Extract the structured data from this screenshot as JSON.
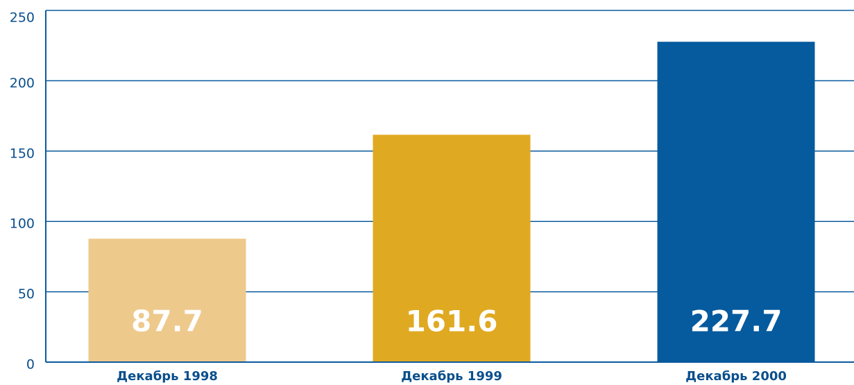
{
  "chart_data": {
    "type": "bar",
    "categories": [
      "Декабрь 1998",
      "Декабрь 1999",
      "Декабрь 2000"
    ],
    "values": [
      87.7,
      161.6,
      227.7
    ],
    "colors": [
      "#eec98c",
      "#e0a922",
      "#065a9e"
    ],
    "ylim": [
      0,
      250
    ],
    "yticks": [
      0,
      50,
      100,
      150,
      200,
      250
    ],
    "grid": true
  }
}
